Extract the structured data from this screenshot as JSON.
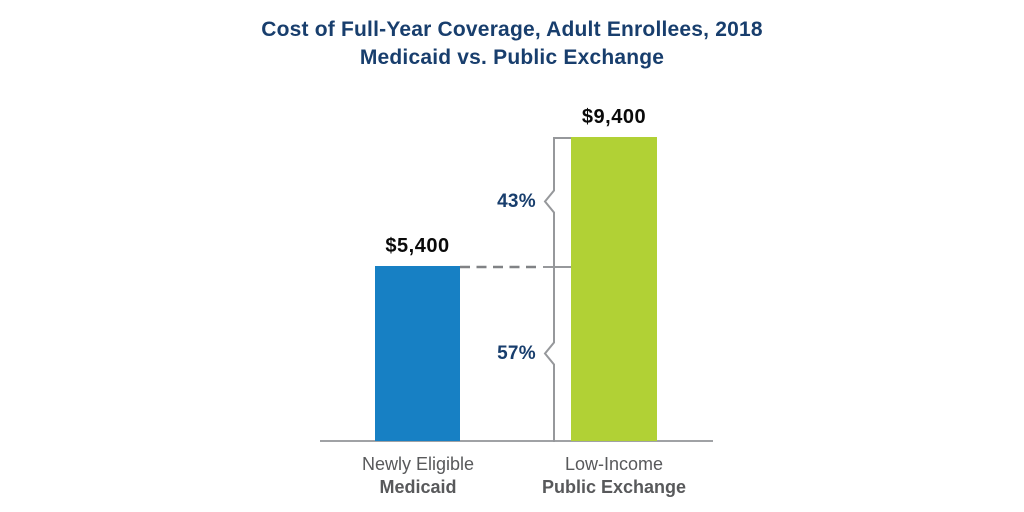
{
  "chart_data": {
    "type": "bar",
    "title": "Cost of Full-Year Coverage, Adult Enrollees, 2018",
    "subtitle": "Medicaid vs. Public Exchange",
    "categories": [
      "Newly Eligible Medicaid",
      "Low-Income Public Exchange"
    ],
    "category_lines": [
      {
        "line1": "Newly Eligible",
        "line2": "Medicaid"
      },
      {
        "line1": "Low-Income",
        "line2": "Public Exchange"
      }
    ],
    "values": [
      5400,
      9400
    ],
    "value_labels": [
      "$5,400",
      "$9,400"
    ],
    "bar_colors": [
      "#1780c4",
      "#b1d135"
    ],
    "annotations": [
      {
        "label": "43%"
      },
      {
        "label": "57%"
      }
    ],
    "ylim": [
      0,
      9400
    ],
    "grid": false,
    "legend": false
  },
  "colors": {
    "background": "#ffffff",
    "title_text": "#183e6d",
    "annotation_text": "#183e6d",
    "value_label_text": "#0a0a0a",
    "axis_label_text": "#58595b",
    "baseline": "#a0a2a5",
    "bracket_line": "#96989b",
    "dashed_line": "#808285",
    "medicaid_bar": "#1780c4",
    "public_exchange_bar": "#b1d135"
  }
}
